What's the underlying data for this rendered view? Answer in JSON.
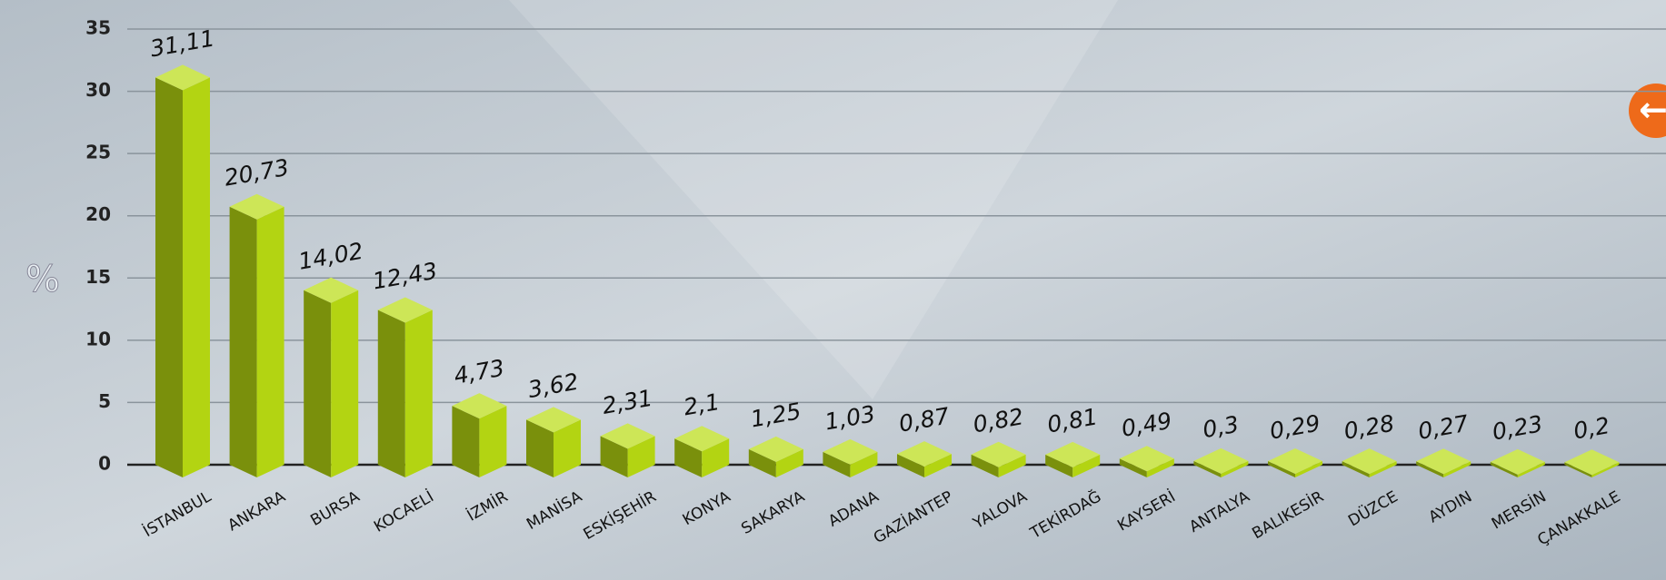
{
  "chart_data": {
    "type": "bar3d",
    "y_label": "%",
    "categories": [
      "İSTANBUL",
      "ANKARA",
      "BURSA",
      "KOCAELİ",
      "İZMİR",
      "MANİSA",
      "ESKİŞEHİR",
      "KONYA",
      "SAKARYA",
      "ADANA",
      "GAZİANTEP",
      "YALOVA",
      "TEKİRDAĞ",
      "KAYSERİ",
      "ANTALYA",
      "BALIKESİR",
      "DÜZCE",
      "AYDIN",
      "MERSİN",
      "ÇANAKKALE"
    ],
    "values": [
      31.11,
      20.73,
      14.02,
      12.43,
      4.73,
      3.62,
      2.31,
      2.1,
      1.25,
      1.03,
      0.87,
      0.82,
      0.81,
      0.49,
      0.3,
      0.29,
      0.28,
      0.27,
      0.23,
      0.2
    ],
    "value_labels": [
      "31,11",
      "20,73",
      "14,02",
      "12,43",
      "4,73",
      "3,62",
      "2,31",
      "2,1",
      "1,25",
      "1,03",
      "0,87",
      "0,82",
      "0,81",
      "0,49",
      "0,3",
      "0,29",
      "0,28",
      "0,27",
      "0,23",
      "0,2"
    ],
    "colors": {
      "front": "#7a900c",
      "side": "#b3d412",
      "top": "#cde657"
    },
    "ylim": [
      0,
      35
    ],
    "yticks": [
      0,
      5,
      10,
      15,
      20,
      25,
      30,
      35
    ],
    "grid": true
  }
}
